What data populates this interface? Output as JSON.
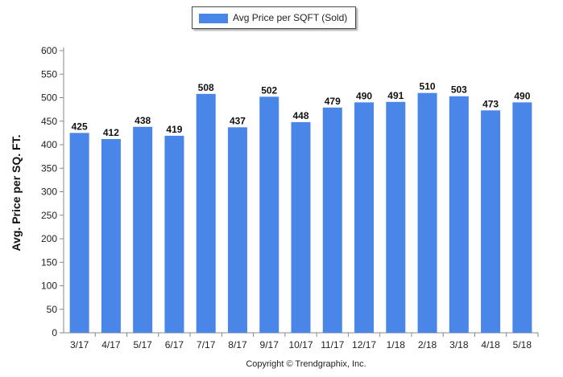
{
  "chart_data": {
    "type": "bar",
    "categories": [
      "3/17",
      "4/17",
      "5/17",
      "6/17",
      "7/17",
      "8/17",
      "9/17",
      "10/17",
      "11/17",
      "12/17",
      "1/18",
      "2/18",
      "3/18",
      "4/18",
      "5/18"
    ],
    "series": [
      {
        "name": "Avg Price per SQFT (Sold)",
        "values": [
          425,
          412,
          438,
          419,
          508,
          437,
          502,
          448,
          479,
          490,
          491,
          510,
          503,
          473,
          490
        ]
      }
    ],
    "ylabel": "Avg. Price per SQ. FT.",
    "xlabel": "",
    "ylim": [
      0,
      600
    ],
    "yticks": [
      0,
      50,
      100,
      150,
      200,
      250,
      300,
      350,
      400,
      450,
      500,
      550,
      600
    ],
    "grid": false,
    "legend_position": "top-center",
    "bar_color": "#4a86e8"
  },
  "footer": {
    "copyright": "Copyright © Trendgraphix, Inc."
  }
}
